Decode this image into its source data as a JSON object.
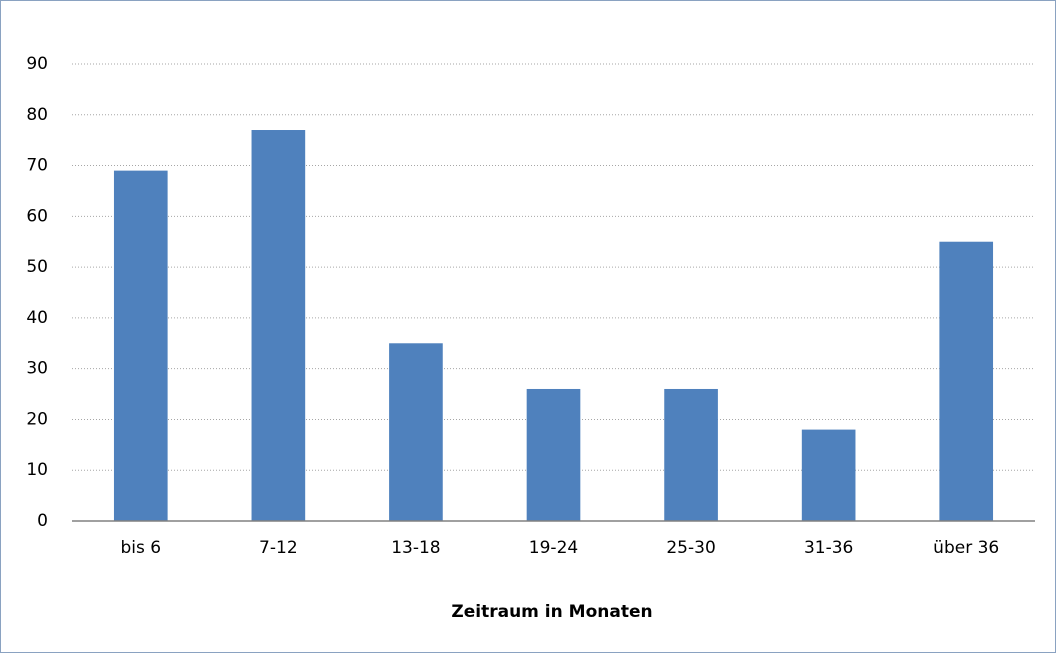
{
  "chart_data": {
    "type": "bar",
    "x_label": "Zeitraum in Monaten",
    "categories": [
      "bis 6",
      "7-12",
      "13-18",
      "19-24",
      "25-30",
      "31-36",
      "über 36"
    ],
    "values": [
      69,
      77,
      35,
      26,
      26,
      18,
      55
    ],
    "color": "#4f81bd",
    "ylim": [
      0,
      90
    ],
    "yticks": [
      0,
      10,
      20,
      30,
      40,
      50,
      60,
      70,
      80,
      90
    ],
    "grid": true
  }
}
